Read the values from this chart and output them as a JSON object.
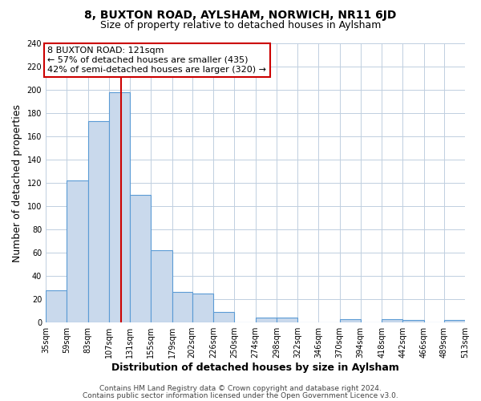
{
  "title": "8, BUXTON ROAD, AYLSHAM, NORWICH, NR11 6JD",
  "subtitle": "Size of property relative to detached houses in Aylsham",
  "xlabel": "Distribution of detached houses by size in Aylsham",
  "ylabel": "Number of detached properties",
  "bin_edges": [
    35,
    59,
    83,
    107,
    131,
    155,
    179,
    202,
    226,
    250,
    274,
    298,
    322,
    346,
    370,
    394,
    418,
    442,
    466,
    489,
    513
  ],
  "bin_labels": [
    "35sqm",
    "59sqm",
    "83sqm",
    "107sqm",
    "131sqm",
    "155sqm",
    "179sqm",
    "202sqm",
    "226sqm",
    "250sqm",
    "274sqm",
    "298sqm",
    "322sqm",
    "346sqm",
    "370sqm",
    "394sqm",
    "418sqm",
    "442sqm",
    "466sqm",
    "489sqm",
    "513sqm"
  ],
  "counts": [
    28,
    122,
    173,
    198,
    110,
    62,
    26,
    25,
    9,
    0,
    4,
    4,
    0,
    0,
    3,
    0,
    3,
    2,
    0,
    2
  ],
  "bar_facecolor": "#c9d9ec",
  "bar_edgecolor": "#5b9bd5",
  "marker_value": 121,
  "marker_color": "#cc0000",
  "annotation_line1": "8 BUXTON ROAD: 121sqm",
  "annotation_line2": "← 57% of detached houses are smaller (435)",
  "annotation_line3": "42% of semi-detached houses are larger (320) →",
  "annotation_box_facecolor": "#ffffff",
  "annotation_box_edgecolor": "#cc0000",
  "ylim": [
    0,
    240
  ],
  "yticks": [
    0,
    20,
    40,
    60,
    80,
    100,
    120,
    140,
    160,
    180,
    200,
    220,
    240
  ],
  "footer_line1": "Contains HM Land Registry data © Crown copyright and database right 2024.",
  "footer_line2": "Contains public sector information licensed under the Open Government Licence v3.0.",
  "background_color": "#ffffff",
  "grid_color": "#c0cfe0",
  "title_fontsize": 10,
  "subtitle_fontsize": 9,
  "axis_label_fontsize": 9,
  "tick_fontsize": 7,
  "annotation_fontsize": 8,
  "footer_fontsize": 6.5
}
